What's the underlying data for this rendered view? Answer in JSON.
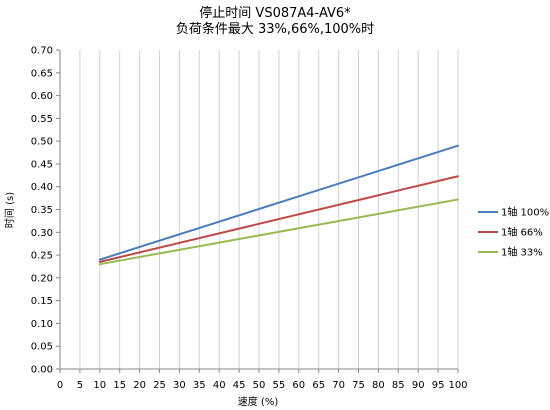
{
  "chart_data": {
    "type": "line",
    "title_lines": [
      "停止时间 VS087A4-AV6*",
      "负荷条件最大 33%,66%,100%时"
    ],
    "xlabel": "速度 (%)",
    "ylabel": "时间 (s)",
    "xlim": [
      0,
      100
    ],
    "ylim": [
      0,
      0.7
    ],
    "xticks": [
      0,
      5,
      10,
      15,
      20,
      25,
      30,
      35,
      40,
      45,
      50,
      55,
      60,
      65,
      70,
      75,
      80,
      85,
      90,
      95,
      100
    ],
    "xtick_labels": [
      "0",
      "5",
      "10",
      "15",
      "20",
      "25",
      "30",
      "35",
      "40",
      "45",
      "50",
      "55",
      "60",
      "65",
      "70",
      "75",
      "80",
      "85",
      "90",
      "95",
      "100"
    ],
    "yticks": [
      0,
      0.05,
      0.1,
      0.15,
      0.2,
      0.25,
      0.3,
      0.35,
      0.4,
      0.45,
      0.5,
      0.55,
      0.6,
      0.65,
      0.7
    ],
    "ytick_labels": [
      "0.00",
      "0.05",
      "0.10",
      "0.15",
      "0.20",
      "0.25",
      "0.30",
      "0.35",
      "0.40",
      "0.45",
      "0.50",
      "0.55",
      "0.60",
      "0.65",
      "0.70"
    ],
    "grid": "vertical",
    "legend_position": "right",
    "series": [
      {
        "name": "1轴 100%",
        "color": "#4a7ebb",
        "x": [
          10,
          100
        ],
        "y": [
          0.24,
          0.49
        ]
      },
      {
        "name": "1轴 66%",
        "color": "#be4b48",
        "x": [
          10,
          100
        ],
        "y": [
          0.235,
          0.423
        ]
      },
      {
        "name": "1轴 33%",
        "color": "#98b954",
        "x": [
          10,
          100
        ],
        "y": [
          0.23,
          0.372
        ]
      }
    ]
  }
}
